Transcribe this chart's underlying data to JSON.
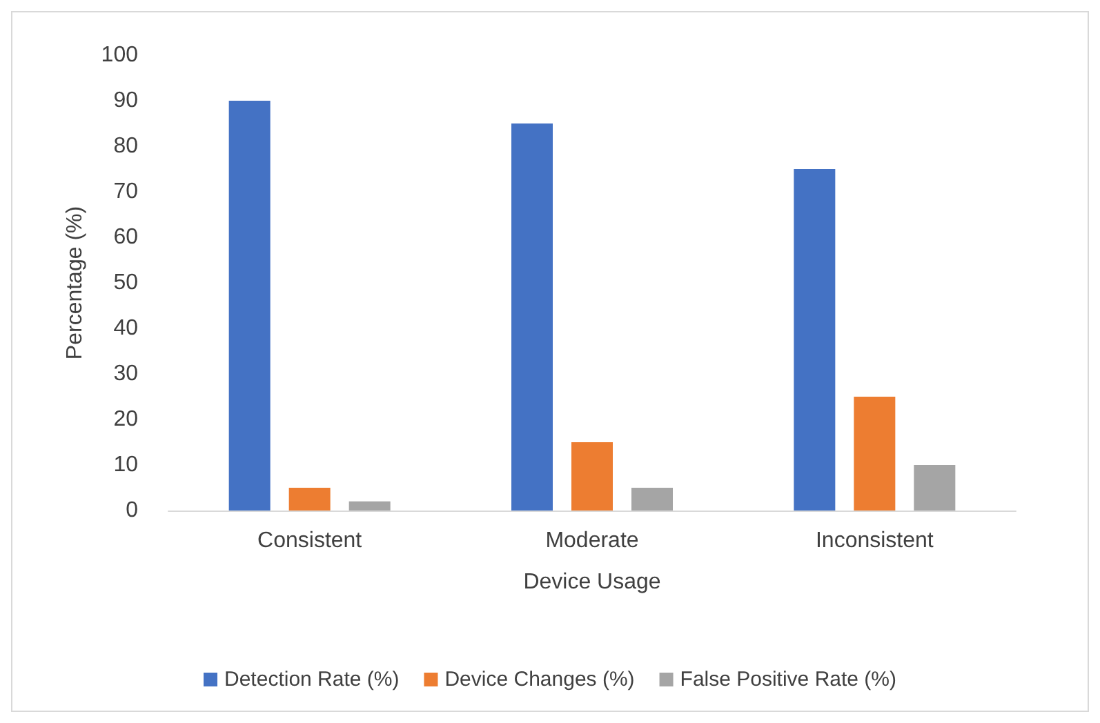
{
  "chart_data": {
    "type": "bar",
    "xlabel": "Device Usage",
    "ylabel": "Percentage (%)",
    "categories": [
      "Consistent",
      "Moderate",
      "Inconsistent"
    ],
    "series": [
      {
        "name": "Detection Rate (%)",
        "color": "#4472c4",
        "values": [
          90,
          85,
          75
        ]
      },
      {
        "name": "Device Changes (%)",
        "color": "#ed7d31",
        "values": [
          5,
          15,
          25
        ]
      },
      {
        "name": "False Positive Rate (%)",
        "color": "#a5a5a5",
        "values": [
          2,
          5,
          10
        ]
      }
    ],
    "ylim": [
      0,
      100
    ],
    "yticks": [
      0,
      10,
      20,
      30,
      40,
      50,
      60,
      70,
      80,
      90,
      100
    ],
    "grid": false,
    "legend": "bottom"
  }
}
